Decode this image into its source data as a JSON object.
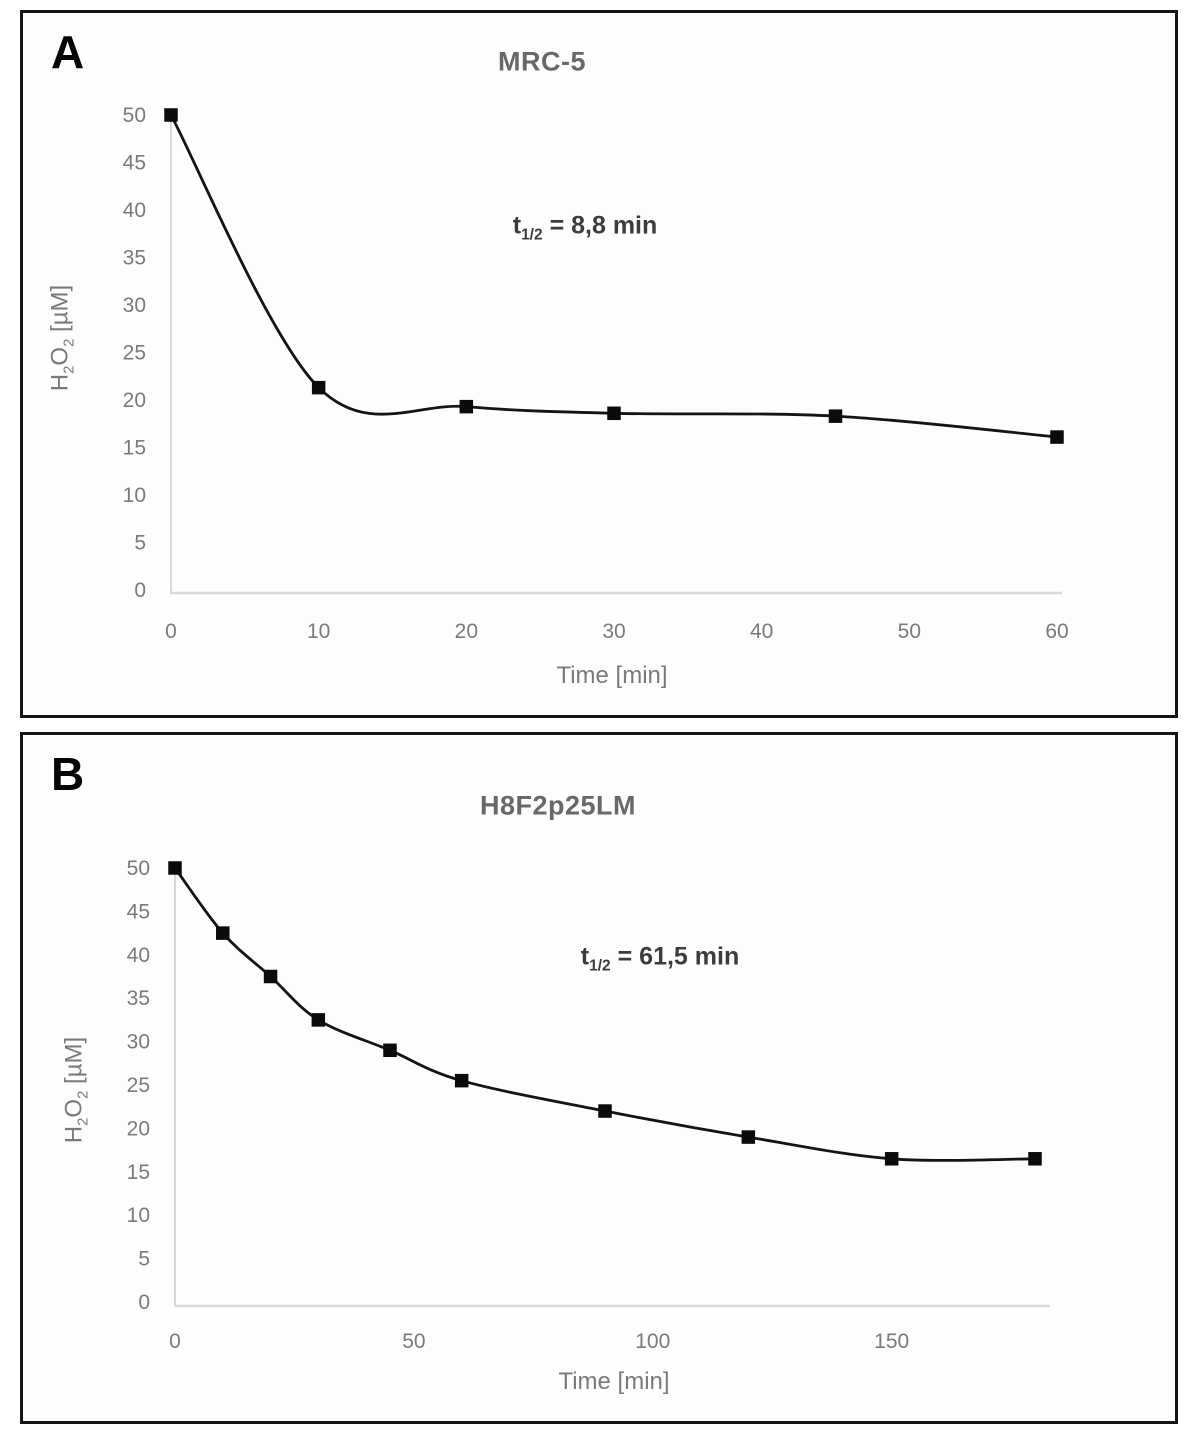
{
  "colors": {
    "series_line": "#141414",
    "marker": "#0b0b0b",
    "axis_line": "#d8d8d8",
    "tick_label": "#7a7a7a",
    "axis_title": "#7a7a7a",
    "chart_title": "#686868",
    "annotation_text": "#3c3c3c",
    "panel_border": "#151515"
  },
  "chart_data": [
    {
      "type": "line",
      "panel_label": "A",
      "title": "MRC-5",
      "annotation": {
        "lead": "t",
        "sub": "1/2",
        "rest": " = 8,8 min"
      },
      "xlabel": "Time [min]",
      "ylabel_parts": {
        "h": "H",
        "h_sub": "2",
        "o": "O",
        "o_sub": "2",
        "unit": " [µM]"
      },
      "x": [
        0,
        10,
        20,
        30,
        45,
        60
      ],
      "y": [
        50,
        21.3,
        19.3,
        18.6,
        18.3,
        16.1
      ],
      "xticks": [
        0,
        10,
        20,
        30,
        40,
        50,
        60
      ],
      "yticks": [
        0,
        5,
        10,
        15,
        20,
        25,
        30,
        35,
        40,
        45,
        50
      ],
      "xlim": [
        0,
        60
      ],
      "ylim": [
        0,
        50
      ],
      "grid": false,
      "legend": "none",
      "marker": "square",
      "line_smooth": true
    },
    {
      "type": "line",
      "panel_label": "B",
      "title": "H8F2p25LM",
      "annotation": {
        "lead": "t",
        "sub": "1/2",
        "rest": " = 61,5 min"
      },
      "xlabel": "Time [min]",
      "ylabel_parts": {
        "h": "H",
        "h_sub": "2",
        "o": "O",
        "o_sub": "2",
        "unit": " [µM]"
      },
      "x": [
        0,
        10,
        20,
        30,
        45,
        60,
        90,
        120,
        150,
        180
      ],
      "y": [
        50,
        42.5,
        37.5,
        32.5,
        29,
        25.5,
        22,
        19,
        16.5,
        16.5
      ],
      "xticks": [
        0,
        50,
        100,
        150
      ],
      "yticks": [
        0,
        5,
        10,
        15,
        20,
        25,
        30,
        35,
        40,
        45,
        50
      ],
      "xlim": [
        0,
        180
      ],
      "ylim": [
        0,
        50
      ],
      "grid": false,
      "legend": "none",
      "marker": "square",
      "line_smooth": true
    }
  ]
}
